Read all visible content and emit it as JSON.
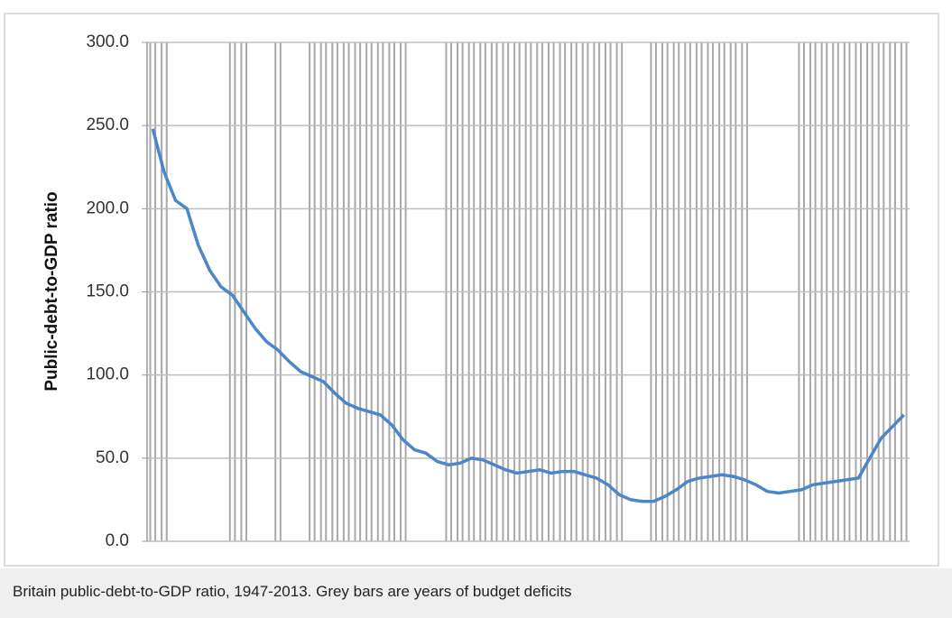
{
  "chart_data": {
    "type": "line",
    "y_label": "Public-debt-to-GDP ratio",
    "caption": "Britain public-debt-to-GDP ratio, 1947-2013. Grey bars are years of budget deficits",
    "categories": [
      null,
      null,
      null,
      null,
      null,
      null,
      null,
      null,
      null,
      null,
      null,
      null,
      null,
      null,
      null,
      null,
      null,
      null,
      null,
      null,
      null,
      null,
      null,
      null,
      null,
      null,
      null,
      null,
      null,
      null,
      null,
      null,
      null,
      null,
      null,
      null,
      null,
      null,
      null,
      null,
      null,
      null,
      null,
      null,
      null,
      null,
      null,
      null,
      null,
      null,
      null,
      null,
      null,
      null,
      null,
      null,
      null,
      null,
      null,
      null,
      null,
      null,
      null,
      null,
      null,
      null,
      null
    ],
    "series": [
      {
        "name": "Public-debt-to-GDP ratio",
        "color": "#4a86c8",
        "values": [
          248,
          222,
          205,
          200,
          178,
          163,
          153,
          148,
          138,
          128,
          120,
          115,
          108,
          102,
          99,
          96,
          89,
          83,
          80,
          78,
          76,
          70,
          61,
          55,
          53,
          48,
          46,
          47,
          50,
          49,
          46,
          43,
          41,
          42,
          43,
          41,
          42,
          42,
          40,
          38,
          34,
          28,
          25,
          24,
          24,
          27,
          31,
          36,
          38,
          39,
          40,
          39,
          37,
          34,
          30,
          29,
          30,
          31,
          34,
          35,
          36,
          37,
          38,
          50,
          62,
          69,
          76
        ]
      }
    ],
    "deficit": [
      true,
      true,
      false,
      false,
      false,
      false,
      false,
      true,
      true,
      false,
      false,
      true,
      false,
      false,
      true,
      true,
      true,
      true,
      true,
      true,
      true,
      true,
      true,
      false,
      false,
      false,
      true,
      true,
      true,
      true,
      true,
      true,
      true,
      true,
      true,
      true,
      true,
      true,
      true,
      true,
      true,
      true,
      false,
      false,
      true,
      true,
      true,
      true,
      true,
      true,
      true,
      true,
      true,
      false,
      false,
      false,
      false,
      true,
      true,
      true,
      true,
      true,
      true,
      true,
      true,
      true,
      true
    ],
    "deficit_color": "#a8a8a8",
    "ylim": [
      0,
      300
    ],
    "yticks": [
      {
        "value": 0,
        "label": "0.0"
      },
      {
        "value": 50,
        "label": "50.0"
      },
      {
        "value": 100,
        "label": "100.0"
      },
      {
        "value": 150,
        "label": "150.0"
      },
      {
        "value": 200,
        "label": "200.0"
      },
      {
        "value": 250,
        "label": "250.0"
      },
      {
        "value": 300,
        "label": "300.0"
      }
    ],
    "grid": true
  }
}
